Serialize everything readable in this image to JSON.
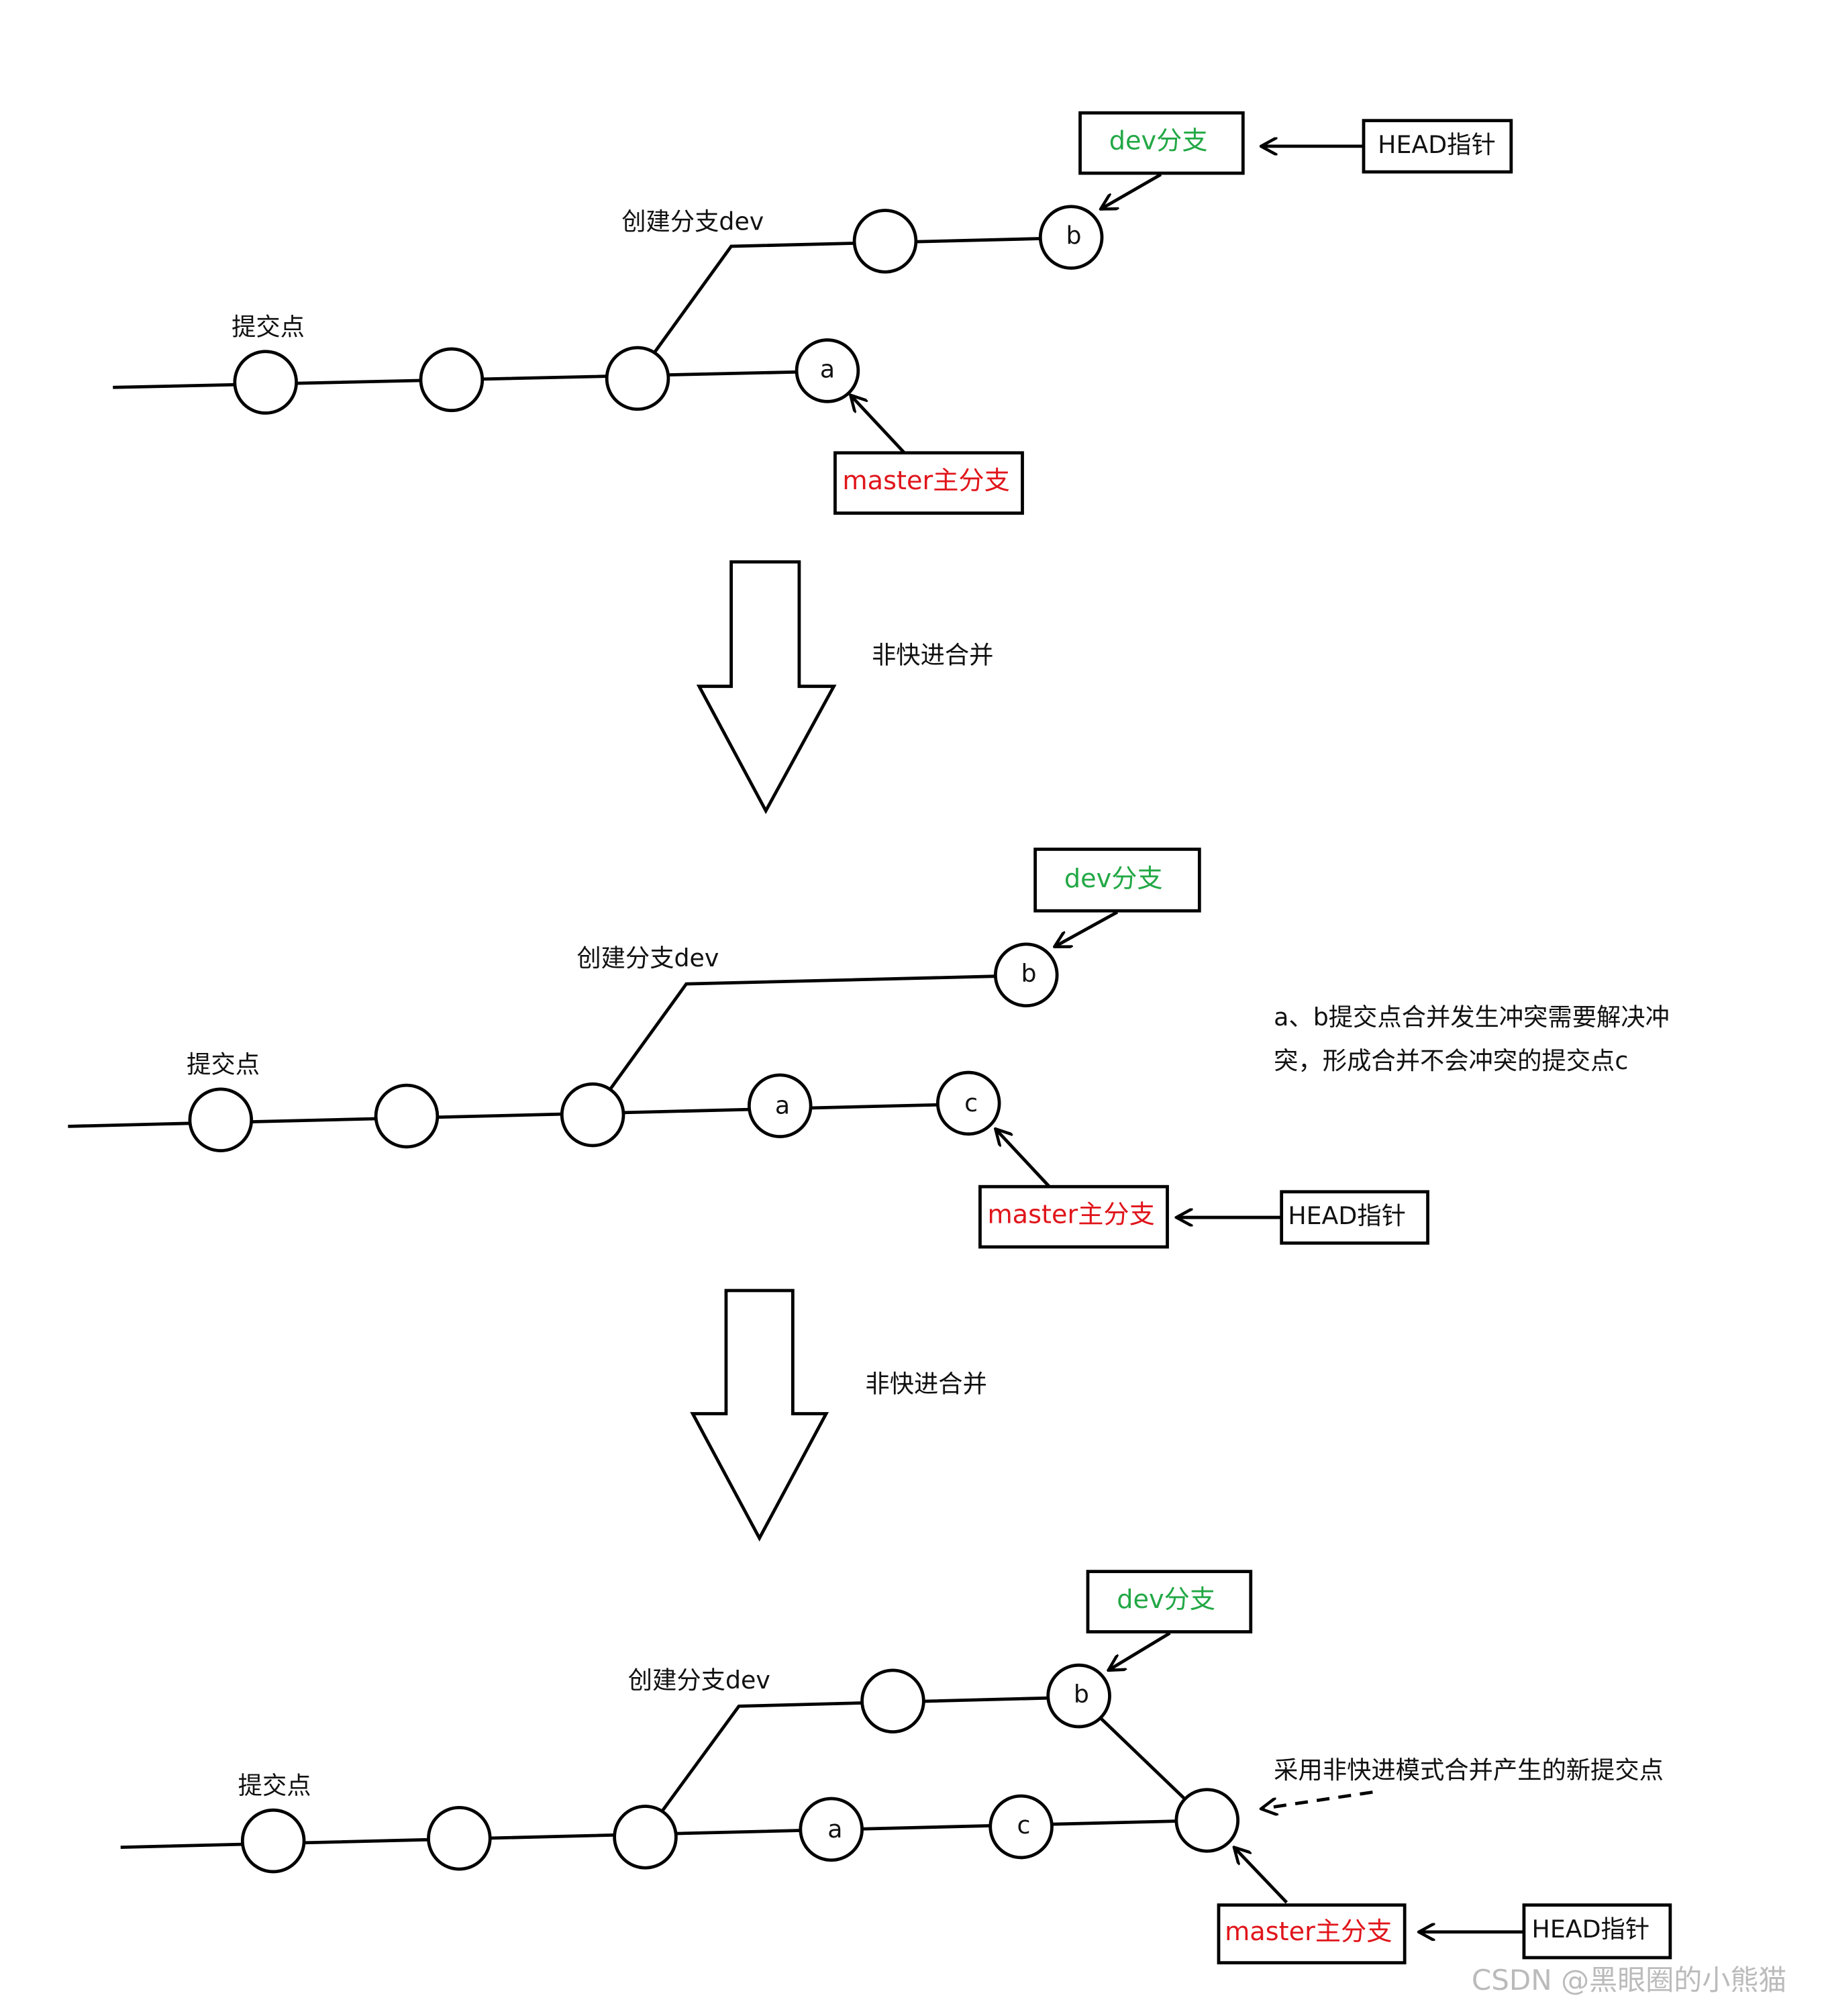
{
  "stages": [
    {
      "commit_label": "提交点",
      "branch_label": "创建分支dev",
      "nodes": [
        "a",
        "b"
      ],
      "dev": "dev分支",
      "master": "master主分支",
      "head": "HEAD指针"
    },
    {
      "commit_label": "提交点",
      "branch_label": "创建分支dev",
      "nodes": [
        "a",
        "b",
        "c"
      ],
      "dev": "dev分支",
      "master": "master主分支",
      "head": "HEAD指针",
      "note": [
        "a、b提交点合并发生冲突需要解决冲",
        "突，形成合并不会冲突的提交点c"
      ]
    },
    {
      "commit_label": "提交点",
      "branch_label": "创建分支dev",
      "nodes": [
        "a",
        "b",
        "c"
      ],
      "dev": "dev分支",
      "master": "master主分支",
      "head": "HEAD指针",
      "note": "采用非快进模式合并产生的新提交点"
    }
  ],
  "transitions": [
    "非快进合并",
    "非快进合并"
  ],
  "watermark": "CSDN @黑眼圈的小熊猫"
}
